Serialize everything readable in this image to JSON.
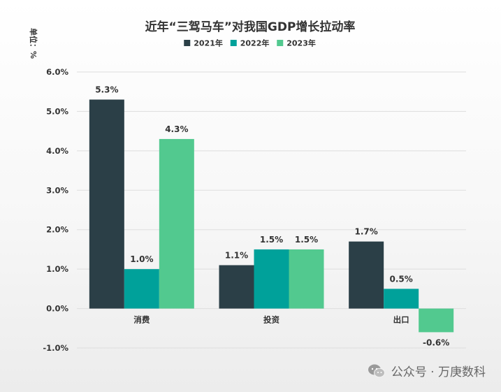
{
  "chart_data": {
    "type": "bar",
    "title": "近年“三驾马车”对我国GDP增长拉动率",
    "ylabel": "单位：%",
    "categories": [
      "消费",
      "投资",
      "出口"
    ],
    "series": [
      {
        "name": "2021年",
        "color": "#2b3f47",
        "values": [
          5.3,
          1.1,
          1.7
        ],
        "labels": [
          "5.3%",
          "1.1%",
          "1.7%"
        ]
      },
      {
        "name": "2022年",
        "color": "#00a19a",
        "values": [
          1.0,
          1.5,
          0.5
        ],
        "labels": [
          "1.0%",
          "1.5%",
          "0.5%"
        ]
      },
      {
        "name": "2023年",
        "color": "#52c98f",
        "values": [
          4.3,
          1.5,
          -0.6
        ],
        "labels": [
          "4.3%",
          "1.5%",
          "-0.6%"
        ]
      }
    ],
    "yticks": [
      6.0,
      5.0,
      4.0,
      3.0,
      2.0,
      1.0,
      0.0,
      -1.0
    ],
    "ytick_labels": [
      "6.0%",
      "5.0%",
      "4.0%",
      "3.0%",
      "2.0%",
      "1.0%",
      "0.0%",
      "-1.0%"
    ],
    "ylim": [
      -1.0,
      6.0
    ],
    "grid": true,
    "legend_position": "top-center"
  },
  "watermark": {
    "icon": "wechat-icon",
    "text": "公众号 · 万庚数科"
  }
}
